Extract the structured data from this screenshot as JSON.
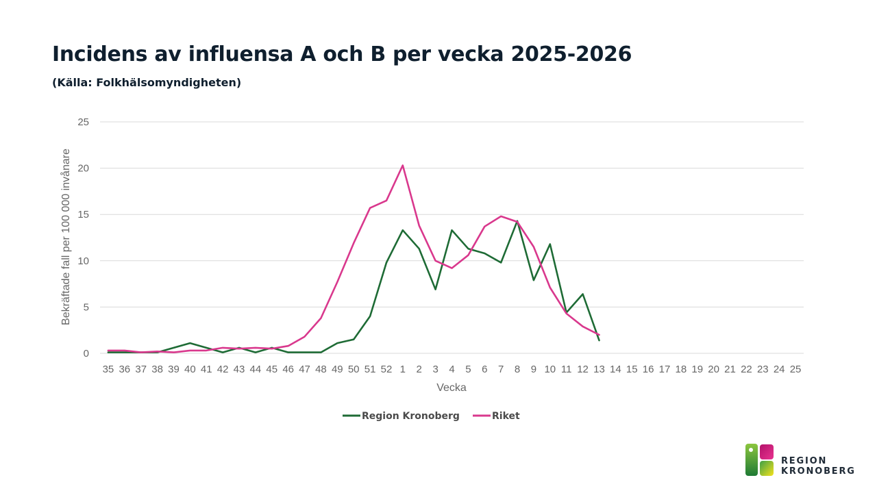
{
  "header": {
    "title": "Incidens av influensa A och B per vecka 2025-2026",
    "subtitle": "(Källa: Folkhälsomyndigheten)"
  },
  "chart_data": {
    "type": "line",
    "title": "Incidens av influensa A och B per vecka 2025-2026",
    "subtitle": "(Källa: Folkhälsomyndigheten)",
    "xlabel": "Vecka",
    "ylabel": "Bekräftade fall per 100 000 invånare",
    "ylim": [
      0,
      25
    ],
    "yticks": [
      0,
      5,
      10,
      15,
      20,
      25
    ],
    "grid": "horizontal",
    "legend_position": "bottom",
    "categories": [
      "35",
      "36",
      "37",
      "38",
      "39",
      "40",
      "41",
      "42",
      "43",
      "44",
      "45",
      "46",
      "47",
      "48",
      "49",
      "50",
      "51",
      "52",
      "1",
      "2",
      "3",
      "4",
      "5",
      "6",
      "7",
      "8",
      "9",
      "10",
      "11",
      "12",
      "13",
      "14",
      "15",
      "16",
      "17",
      "18",
      "19",
      "20",
      "21",
      "22",
      "23",
      "24",
      "25"
    ],
    "series": [
      {
        "name": "Region Kronoberg",
        "color": "#1e6b35",
        "values": [
          0.1,
          0.1,
          0.1,
          0.1,
          0.6,
          1.1,
          0.6,
          0.1,
          0.6,
          0.1,
          0.6,
          0.1,
          0.1,
          0.1,
          1.1,
          1.5,
          4.0,
          9.8,
          13.3,
          11.3,
          6.9,
          13.3,
          11.3,
          10.8,
          9.8,
          14.3,
          7.9,
          11.8,
          4.4,
          6.4,
          1.4,
          null,
          null,
          null,
          null,
          null,
          null,
          null,
          null,
          null,
          null,
          null,
          null
        ]
      },
      {
        "name": "Riket",
        "color": "#d9388d",
        "values": [
          0.3,
          0.3,
          0.1,
          0.2,
          0.1,
          0.3,
          0.3,
          0.6,
          0.5,
          0.6,
          0.5,
          0.8,
          1.8,
          3.8,
          7.7,
          11.9,
          15.7,
          16.5,
          20.3,
          13.8,
          10.0,
          9.2,
          10.6,
          13.7,
          14.8,
          14.2,
          11.5,
          7.1,
          4.3,
          2.9,
          2.0,
          null,
          null,
          null,
          null,
          null,
          null,
          null,
          null,
          null,
          null,
          null,
          null
        ]
      }
    ]
  },
  "logo": {
    "line1": "REGION",
    "line2": "KRONOBERG",
    "colors": [
      "#2a8a3a",
      "#d81b7a",
      "#f2d21a"
    ]
  }
}
